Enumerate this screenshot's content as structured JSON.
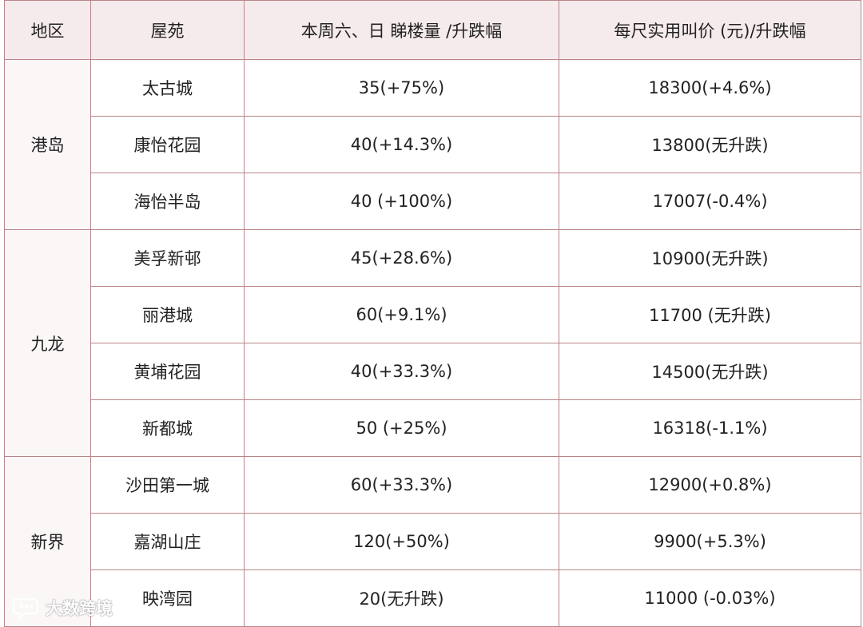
{
  "table": {
    "headers": {
      "region": "地区",
      "estate": "屋苑",
      "viewers": "本周六、日 睇楼量 /升跌幅",
      "price": "每尺实用叫价 (元)/升跌幅"
    },
    "regions": [
      {
        "name": "港岛",
        "rows": [
          {
            "estate": "太古城",
            "viewers": "35(+75%)",
            "price": "18300(+4.6%)"
          },
          {
            "estate": "康怡花园",
            "viewers": "40(+14.3%)",
            "price": "13800(无升跌)"
          },
          {
            "estate": "海怡半岛",
            "viewers": "40 (+100%)",
            "price": "17007(-0.4%)"
          }
        ]
      },
      {
        "name": "九龙",
        "rows": [
          {
            "estate": "美孚新邨",
            "viewers": "45(+28.6%)",
            "price": "10900(无升跌)"
          },
          {
            "estate": "丽港城",
            "viewers": "60(+9.1%)",
            "price": "11700 (无升跌)"
          },
          {
            "estate": "黄埔花园",
            "viewers": "40(+33.3%)",
            "price": "14500(无升跌)"
          },
          {
            "estate": "新都城",
            "viewers": "50 (+25%)",
            "price": "16318(-1.1%)"
          }
        ]
      },
      {
        "name": "新界",
        "rows": [
          {
            "estate": "沙田第一城",
            "viewers": "60(+33.3%)",
            "price": "12900(+0.8%)"
          },
          {
            "estate": "嘉湖山庄",
            "viewers": "120(+50%)",
            "price": "9900(+5.3%)"
          },
          {
            "estate": "映湾园",
            "viewers": "20(无升跌)",
            "price": "11000 (-0.03%)"
          }
        ]
      }
    ]
  },
  "watermark": {
    "text": "大数跨境",
    "icon": "chat-bubble-logo-icon"
  },
  "colors": {
    "border": "#b98589",
    "header_bg": "#f6ebec"
  }
}
